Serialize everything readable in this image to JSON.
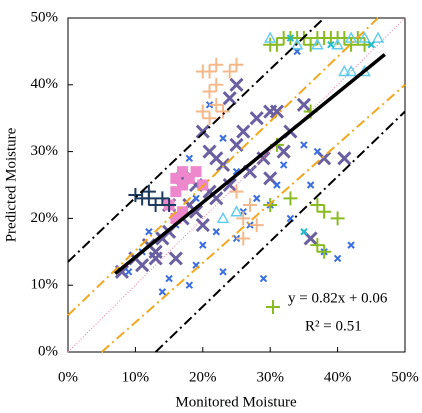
{
  "chart_data": {
    "type": "scatter",
    "x_label": "Monitored Moisture",
    "y_label": "Predicted Moisture",
    "xlim": [
      0,
      50
    ],
    "ylim": [
      0,
      50
    ],
    "xticks": [
      {
        "value": 0,
        "label": "0%"
      },
      {
        "value": 10,
        "label": "10%"
      },
      {
        "value": 20,
        "label": "20%"
      },
      {
        "value": 30,
        "label": "30%"
      },
      {
        "value": 40,
        "label": "40%"
      },
      {
        "value": 50,
        "label": "50%"
      }
    ],
    "yticks": [
      {
        "value": 0,
        "label": "0%"
      },
      {
        "value": 10,
        "label": "10%"
      },
      {
        "value": 20,
        "label": "20%"
      },
      {
        "value": 30,
        "label": "30%"
      },
      {
        "value": 40,
        "label": "40%"
      },
      {
        "value": 50,
        "label": "50%"
      }
    ],
    "grid": false,
    "annotations": [
      "y = 0.82x + 0.06",
      "R² = 0.51"
    ],
    "series": [
      {
        "marker": "x",
        "color": "#6a5fa0",
        "x": [
          8,
          10,
          11,
          12,
          13,
          14,
          15,
          16,
          17,
          18,
          19,
          20,
          21,
          22,
          23,
          24,
          25,
          26,
          27,
          28,
          29,
          30,
          31,
          32,
          33,
          35,
          38,
          41,
          36,
          19,
          17,
          22,
          24,
          25,
          20,
          21,
          15,
          13,
          30
        ],
        "values": [
          12,
          14,
          13,
          16,
          15,
          17,
          18,
          14,
          20,
          22,
          21,
          19,
          24,
          23,
          28,
          25,
          31,
          33,
          27,
          35,
          29,
          26,
          36,
          30,
          33,
          37,
          29,
          29,
          17,
          25,
          26,
          29,
          38,
          40,
          33,
          30,
          22,
          14,
          36
        ]
      },
      {
        "marker": "x-small",
        "color": "#3a6ee0",
        "x": [
          9,
          11,
          12,
          14,
          15,
          16,
          18,
          19,
          20,
          22,
          23,
          25,
          26,
          28,
          29,
          30,
          31,
          32,
          33,
          35,
          37,
          38,
          40,
          42,
          36,
          27,
          18,
          21,
          23,
          25,
          34,
          19
        ],
        "values": [
          12,
          15,
          18,
          9,
          11,
          19,
          10,
          13,
          16,
          18,
          12,
          17,
          21,
          23,
          11,
          22,
          25,
          28,
          20,
          31,
          30,
          15,
          14,
          16,
          25,
          19,
          29,
          37,
          32,
          27,
          45,
          23
        ]
      },
      {
        "marker": "plus",
        "color": "#f5b88a",
        "x": [
          20,
          21,
          22,
          24,
          25,
          21,
          22,
          20,
          25,
          26,
          27,
          26,
          28,
          23,
          22,
          21
        ],
        "values": [
          42,
          42,
          43,
          42,
          43,
          39,
          40,
          36,
          24,
          20,
          22,
          17,
          19,
          36,
          37,
          35
        ]
      },
      {
        "marker": "square",
        "color": "#ee88cc",
        "x": [
          16,
          17,
          18,
          19,
          20,
          17,
          16,
          17,
          16,
          15
        ],
        "values": [
          26,
          27,
          26,
          27,
          25,
          25,
          24,
          21,
          20,
          22
        ]
      },
      {
        "marker": "plus",
        "color": "#1f3a5f",
        "x": [
          10,
          11,
          12,
          13,
          14,
          15,
          12
        ],
        "values": [
          23.5,
          23,
          23,
          22,
          23,
          22,
          24
        ]
      },
      {
        "marker": "plus",
        "color": "#88bb22",
        "x": [
          30,
          31,
          32,
          33,
          34,
          35,
          36,
          37,
          38,
          39,
          40,
          41,
          42,
          43,
          44,
          31,
          30,
          33,
          36,
          37,
          38,
          40,
          38,
          37
        ],
        "values": [
          46,
          46,
          47,
          47,
          47,
          47,
          46,
          47,
          47,
          47,
          47,
          47,
          46,
          47,
          46,
          31,
          22,
          23,
          36,
          22,
          21,
          20,
          15,
          16
        ]
      },
      {
        "marker": "triangle",
        "color": "#66ccee",
        "x": [
          30,
          34,
          37,
          40,
          42,
          44,
          46,
          41,
          42,
          44,
          25,
          23
        ],
        "values": [
          47,
          46,
          46,
          46,
          47,
          47,
          47,
          42,
          42,
          42,
          21,
          20
        ]
      },
      {
        "marker": "x-small",
        "color": "#22bbcc",
        "x": [
          33,
          39,
          45,
          35
        ],
        "values": [
          47,
          46,
          46,
          18
        ]
      }
    ],
    "lines": [
      {
        "x": [
          0,
          50
        ],
        "values": [
          0,
          50
        ],
        "color": "#e87aa0",
        "width": 1,
        "dash": "1 2"
      },
      {
        "x": [
          0,
          46
        ],
        "values": [
          5.5,
          50
        ],
        "color": "#f0a820",
        "width": 2,
        "dash": "10 4 2 4"
      },
      {
        "x": [
          5,
          50
        ],
        "values": [
          0,
          40
        ],
        "color": "#f0a820",
        "width": 2,
        "dash": "10 4 2 4"
      },
      {
        "x": [
          0,
          38
        ],
        "values": [
          13.5,
          50
        ],
        "color": "#000000",
        "width": 2,
        "dash": "10 4 2 4"
      },
      {
        "x": [
          13,
          50
        ],
        "values": [
          0,
          36
        ],
        "color": "#000000",
        "width": 2,
        "dash": "10 4 2 4"
      },
      {
        "x": [
          7,
          47
        ],
        "values": [
          11.74,
          44.54
        ],
        "color": "#000000",
        "width": 3.5,
        "dash": ""
      }
    ]
  }
}
